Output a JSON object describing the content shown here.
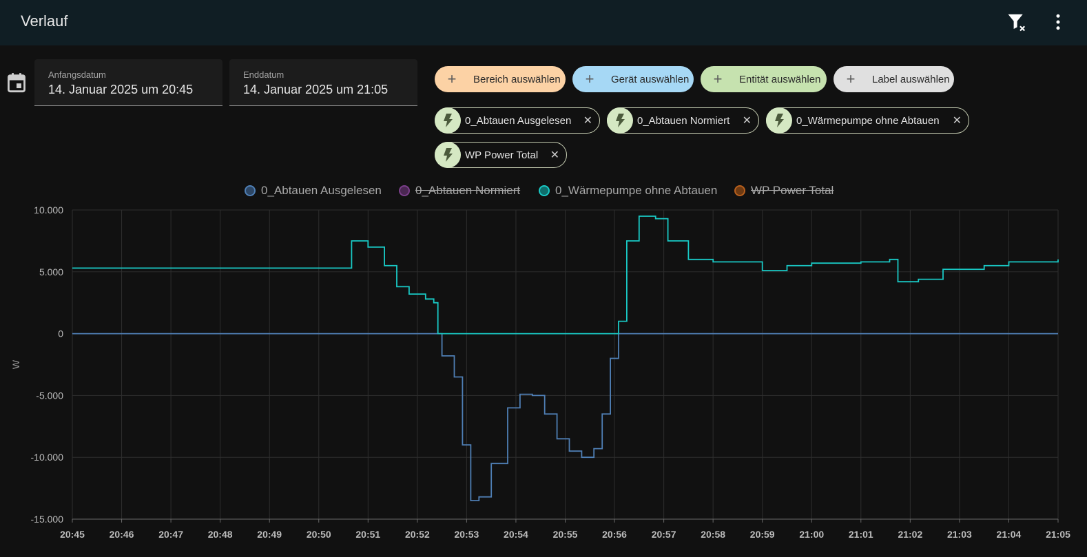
{
  "header": {
    "title": "Verlauf",
    "filter_icon": "filter-remove-icon",
    "menu_icon": "dots-vertical-icon"
  },
  "dates": {
    "icon": "calendar-icon",
    "start": {
      "label": "Anfangsdatum",
      "value": "14. Januar 2025 um 20:45"
    },
    "end": {
      "label": "Enddatum",
      "value": "14. Januar 2025 um 21:05"
    }
  },
  "pickers": [
    {
      "label": "Bereich auswählen",
      "color": "#fcd2a5"
    },
    {
      "label": "Gerät auswählen",
      "color": "#a6d8f5"
    },
    {
      "label": "Entität auswählen",
      "color": "#c6e2af"
    },
    {
      "label": "Label auswählen",
      "color": "#e0e0e0"
    }
  ],
  "chips": [
    {
      "label": "0_Abtauen Ausgelesen"
    },
    {
      "label": "0_Abtauen Normiert"
    },
    {
      "label": "0_Wärmepumpe ohne Abtauen"
    },
    {
      "label": "WP Power Total"
    }
  ],
  "chart_data": {
    "type": "line",
    "step": true,
    "ylabel": "W",
    "ylim": [
      -15000,
      10000
    ],
    "yticks": [
      "10.000",
      "5.000",
      "0",
      "-5.000",
      "-10.000",
      "-15.000"
    ],
    "ytick_values": [
      10000,
      5000,
      0,
      -5000,
      -10000,
      -15000
    ],
    "xticks": [
      "20:45",
      "20:46",
      "20:47",
      "20:48",
      "20:49",
      "20:50",
      "20:51",
      "20:52",
      "20:53",
      "20:54",
      "20:55",
      "20:56",
      "20:57",
      "20:58",
      "20:59",
      "21:00",
      "21:01",
      "21:02",
      "21:03",
      "21:04",
      "21:05"
    ],
    "grid": true,
    "legend_position": "top",
    "series": [
      {
        "name": "0_Abtauen Ausgelesen",
        "color": "#4f7fb5",
        "visible": true,
        "x": [
          "20:45",
          "20:52:20",
          "20:52:30",
          "20:52:45",
          "20:52:55",
          "20:53:05",
          "20:53:15",
          "20:53:30",
          "20:53:50",
          "20:54:05",
          "20:54:20",
          "20:54:35",
          "20:54:50",
          "20:55:05",
          "20:55:20",
          "20:55:35",
          "20:55:45",
          "20:55:55",
          "20:56:05",
          "21:05"
        ],
        "y": [
          0,
          0,
          -1800,
          -3500,
          -9000,
          -13500,
          -13200,
          -10500,
          -6000,
          -4900,
          -5000,
          -6500,
          -8500,
          -9500,
          -10000,
          -9300,
          -6500,
          -2000,
          0,
          0
        ]
      },
      {
        "name": "0_Abtauen Normiert",
        "color": "#7b3f8a",
        "visible": false
      },
      {
        "name": "0_Wärmepumpe ohne Abtauen",
        "color": "#19c9c5",
        "visible": true,
        "x": [
          "20:45",
          "20:50:30",
          "20:50:40",
          "20:51:00",
          "20:51:20",
          "20:51:35",
          "20:51:50",
          "20:52:10",
          "20:52:20",
          "20:52:25",
          "20:56:00",
          "20:56:05",
          "20:56:15",
          "20:56:30",
          "20:56:50",
          "20:57:05",
          "20:57:30",
          "20:58:00",
          "20:59:00",
          "20:59:30",
          "21:00:00",
          "21:01:00",
          "21:01:35",
          "21:01:45",
          "21:02:10",
          "21:02:40",
          "21:03:30",
          "21:04:00",
          "21:05"
        ],
        "y": [
          5300,
          5300,
          7500,
          7000,
          5500,
          3800,
          3200,
          2800,
          2500,
          0,
          0,
          1000,
          7500,
          9500,
          9300,
          7500,
          6000,
          5800,
          5100,
          5500,
          5700,
          5800,
          6000,
          4200,
          4400,
          5200,
          5500,
          5800,
          6000
        ]
      },
      {
        "name": "WP Power Total",
        "color": "#b8601d",
        "visible": false
      }
    ]
  }
}
